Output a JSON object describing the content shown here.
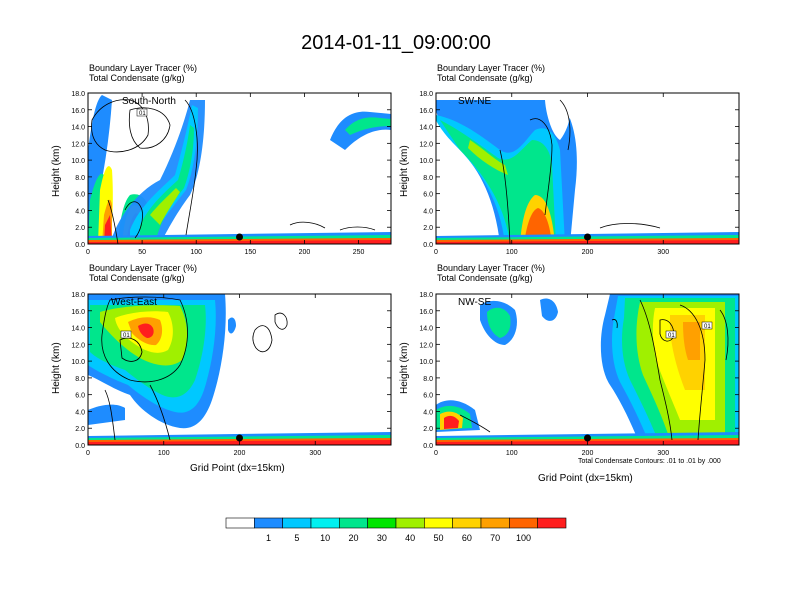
{
  "title": "2014-01-11_09:00:00",
  "colorbar": {
    "labels": [
      "1",
      "5",
      "10",
      "20",
      "30",
      "40",
      "50",
      "60",
      "70",
      "100"
    ],
    "colors": [
      "#ffffff",
      "#1e8cff",
      "#00c8ff",
      "#00f0f0",
      "#00e68c",
      "#00e600",
      "#a0f000",
      "#ffff00",
      "#ffd200",
      "#ffa000",
      "#ff6400",
      "#ff1e1e"
    ]
  },
  "contour_note": "Total Condensate Contours: .01 to .01 by .000",
  "chart_data": [
    {
      "type": "heatmap",
      "panel_label": "South-North",
      "title_lines": [
        "Boundary Layer Tracer   (%)",
        "Total Condensate   (g/kg)"
      ],
      "ylabel": "Height (km)",
      "xlabel": "",
      "xlim": [
        0,
        280
      ],
      "ylim": [
        0,
        18
      ],
      "xticks": [
        "0",
        "50",
        "100",
        "150",
        "200",
        "250"
      ],
      "xtick_values": [
        0,
        50,
        100,
        150,
        200,
        250
      ],
      "yticks": [
        "0.0",
        "2.0",
        "4.0",
        "6.0",
        "8.0",
        "10.0",
        "12.0",
        "14.0",
        "16.0",
        "18.0"
      ],
      "ytick_values": [
        0,
        2,
        4,
        6,
        8,
        10,
        12,
        14,
        16,
        18
      ],
      "marker_x": 140,
      "contour_label": "01"
    },
    {
      "type": "heatmap",
      "panel_label": "SW-NE",
      "title_lines": [
        "Boundary Layer Tracer   (%)",
        "Total Condensate   (g/kg)"
      ],
      "ylabel": "Height (km)",
      "xlabel": "",
      "xlim": [
        0,
        400
      ],
      "ylim": [
        0,
        18
      ],
      "xticks": [
        "0",
        "100",
        "200",
        "300"
      ],
      "xtick_values": [
        0,
        100,
        200,
        300
      ],
      "yticks": [
        "0.0",
        "2.0",
        "4.0",
        "6.0",
        "8.0",
        "10.0",
        "12.0",
        "14.0",
        "16.0",
        "18.0"
      ],
      "ytick_values": [
        0,
        2,
        4,
        6,
        8,
        10,
        12,
        14,
        16,
        18
      ],
      "marker_x": 200,
      "contour_label": "01"
    },
    {
      "type": "heatmap",
      "panel_label": "West-East",
      "title_lines": [
        "Boundary Layer Tracer   (%)",
        "Total Condensate   (g/kg)"
      ],
      "ylabel": "Height (km)",
      "xlabel": "Grid Point (dx=15km)",
      "xlim": [
        0,
        400
      ],
      "ylim": [
        0,
        18
      ],
      "xticks": [
        "0",
        "100",
        "200",
        "300"
      ],
      "xtick_values": [
        0,
        100,
        200,
        300
      ],
      "yticks": [
        "0.0",
        "2.0",
        "4.0",
        "6.0",
        "8.0",
        "10.0",
        "12.0",
        "14.0",
        "16.0",
        "18.0"
      ],
      "ytick_values": [
        0,
        2,
        4,
        6,
        8,
        10,
        12,
        14,
        16,
        18
      ],
      "marker_x": 200,
      "contour_label": "01"
    },
    {
      "type": "heatmap",
      "panel_label": "NW-SE",
      "title_lines": [
        "Boundary Layer Tracer   (%)",
        "Total Condensate   (g/kg)"
      ],
      "ylabel": "Height (km)",
      "xlabel": "Grid Point (dx=15km)",
      "xlim": [
        0,
        400
      ],
      "ylim": [
        0,
        18
      ],
      "xticks": [
        "0",
        "100",
        "200",
        "300"
      ],
      "xtick_values": [
        0,
        100,
        200,
        300
      ],
      "yticks": [
        "0.0",
        "2.0",
        "4.0",
        "6.0",
        "8.0",
        "10.0",
        "12.0",
        "14.0",
        "16.0",
        "18.0"
      ],
      "ytick_values": [
        0,
        2,
        4,
        6,
        8,
        10,
        12,
        14,
        16,
        18
      ],
      "marker_x": 200,
      "contour_label": "01"
    }
  ]
}
